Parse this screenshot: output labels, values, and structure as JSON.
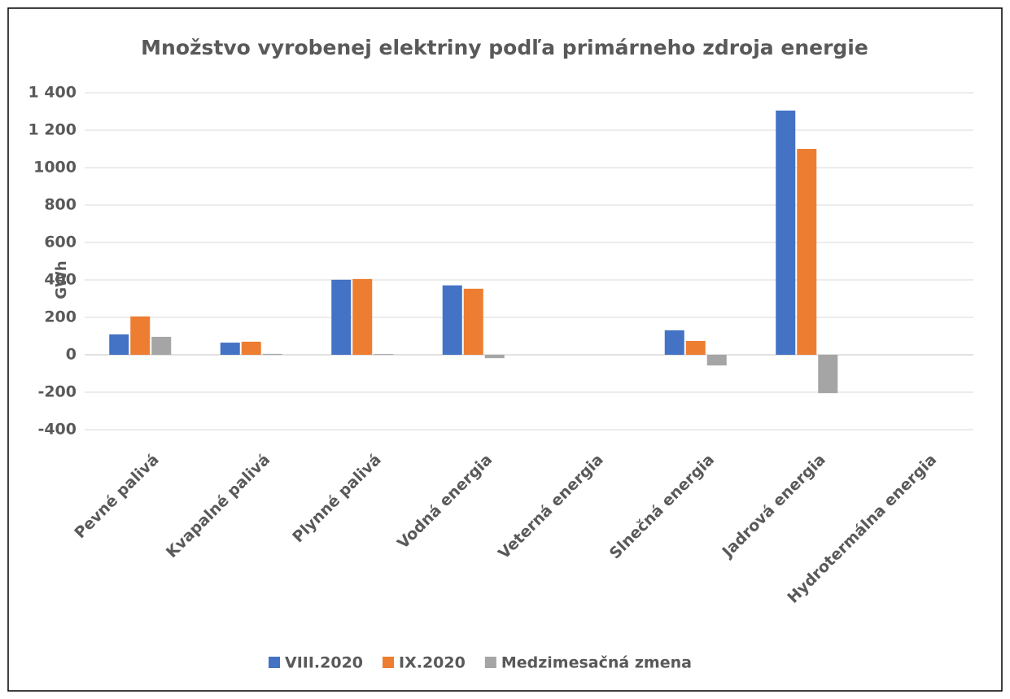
{
  "chart_data": {
    "type": "bar",
    "title": "Množstvo vyrobenej elektriny podľa primárneho zdroja energie",
    "y_label": "GWh",
    "categories": [
      "Pevné palivá",
      "Kvapalné palivá",
      "Plynné palivá",
      "Vodná energia",
      "Veterná energia",
      "Slnečná energia",
      "Jadrová energia",
      "Hydrotermálna energia"
    ],
    "series": [
      {
        "name": "VIII.2020",
        "color": "#4472c4",
        "values": [
          109,
          65,
          401,
          371,
          0,
          131,
          1305,
          0
        ]
      },
      {
        "name": "IX.2020",
        "color": "#ed7d31",
        "values": [
          205,
          70,
          405,
          353,
          0,
          74,
          1100,
          0
        ]
      },
      {
        "name": "Medzimesačná zmena",
        "color": "#a5a5a5",
        "values": [
          96,
          5,
          4,
          -18,
          0,
          -57,
          -205,
          0
        ]
      }
    ],
    "ylim": [
      -400,
      1400
    ],
    "yticks": [
      -400,
      -200,
      0,
      200,
      400,
      600,
      800,
      1000,
      {
        "value": 1200,
        "label": "1 200"
      },
      {
        "value": 1400,
        "label": "1 400"
      }
    ],
    "grid": true,
    "legend": "bottom"
  }
}
